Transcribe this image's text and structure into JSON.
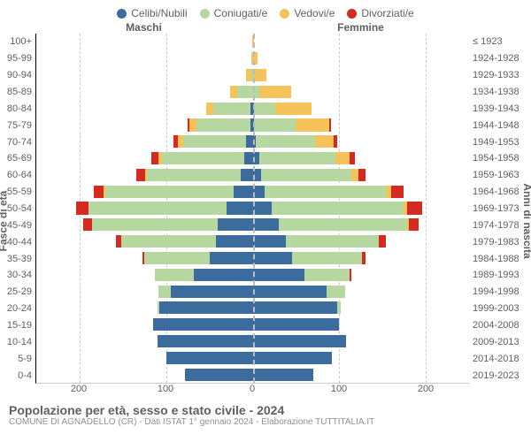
{
  "legend": {
    "items": [
      {
        "label": "Celibi/Nubili",
        "color": "#3b6c9d"
      },
      {
        "label": "Coniugati/e",
        "color": "#b7d7a0"
      },
      {
        "label": "Vedovi/e",
        "color": "#f6c35a"
      },
      {
        "label": "Divorziati/e",
        "color": "#d42a20"
      }
    ]
  },
  "headers": {
    "male": "Maschi",
    "female": "Femmine"
  },
  "axis_left_title": "Fasce di età",
  "axis_right_title": "Anni di nascita",
  "footer": {
    "title": "Popolazione per età, sesso e stato civile - 2024",
    "subtitle": "COMUNE DI AGNADELLO (CR) - Dati ISTAT 1° gennaio 2024 - Elaborazione TUTTITALIA.IT"
  },
  "x_axis": {
    "max": 250,
    "ticks_male": [
      200,
      100,
      0
    ],
    "ticks_female": [
      0,
      100,
      200
    ]
  },
  "rows": [
    {
      "age": "100+",
      "birth": "≤ 1923",
      "m": [
        0,
        0,
        1,
        0
      ],
      "f": [
        0,
        0,
        1,
        0
      ]
    },
    {
      "age": "95-99",
      "birth": "1924-1928",
      "m": [
        0,
        0,
        2,
        0
      ],
      "f": [
        0,
        0,
        6,
        0
      ]
    },
    {
      "age": "90-94",
      "birth": "1929-1933",
      "m": [
        0,
        2,
        6,
        0
      ],
      "f": [
        0,
        2,
        14,
        0
      ]
    },
    {
      "age": "85-89",
      "birth": "1934-1938",
      "m": [
        0,
        18,
        8,
        0
      ],
      "f": [
        0,
        8,
        36,
        0
      ]
    },
    {
      "age": "80-84",
      "birth": "1939-1943",
      "m": [
        3,
        43,
        8,
        0
      ],
      "f": [
        2,
        24,
        42,
        0
      ]
    },
    {
      "age": "75-79",
      "birth": "1944-1948",
      "m": [
        3,
        62,
        8,
        2
      ],
      "f": [
        2,
        48,
        38,
        2
      ]
    },
    {
      "age": "70-74",
      "birth": "1949-1953",
      "m": [
        8,
        72,
        6,
        6
      ],
      "f": [
        4,
        68,
        22,
        4
      ]
    },
    {
      "age": "65-69",
      "birth": "1954-1958",
      "m": [
        10,
        95,
        4,
        8
      ],
      "f": [
        8,
        88,
        16,
        6
      ]
    },
    {
      "age": "60-64",
      "birth": "1959-1963",
      "m": [
        14,
        108,
        2,
        10
      ],
      "f": [
        10,
        104,
        8,
        8
      ]
    },
    {
      "age": "55-59",
      "birth": "1964-1968",
      "m": [
        22,
        148,
        2,
        12
      ],
      "f": [
        14,
        140,
        6,
        14
      ]
    },
    {
      "age": "50-54",
      "birth": "1969-1973",
      "m": [
        30,
        160,
        0,
        14
      ],
      "f": [
        22,
        152,
        4,
        18
      ]
    },
    {
      "age": "45-49",
      "birth": "1974-1978",
      "m": [
        40,
        146,
        0,
        10
      ],
      "f": [
        30,
        148,
        2,
        12
      ]
    },
    {
      "age": "40-44",
      "birth": "1979-1983",
      "m": [
        42,
        110,
        0,
        6
      ],
      "f": [
        38,
        108,
        0,
        8
      ]
    },
    {
      "age": "35-39",
      "birth": "1984-1988",
      "m": [
        50,
        75,
        0,
        2
      ],
      "f": [
        46,
        80,
        0,
        4
      ]
    },
    {
      "age": "30-34",
      "birth": "1989-1993",
      "m": [
        68,
        45,
        0,
        0
      ],
      "f": [
        60,
        52,
        0,
        2
      ]
    },
    {
      "age": "25-29",
      "birth": "1994-1998",
      "m": [
        95,
        14,
        0,
        0
      ],
      "f": [
        85,
        22,
        0,
        0
      ]
    },
    {
      "age": "20-24",
      "birth": "1999-2003",
      "m": [
        108,
        2,
        0,
        0
      ],
      "f": [
        98,
        4,
        0,
        0
      ]
    },
    {
      "age": "15-19",
      "birth": "2004-2008",
      "m": [
        115,
        0,
        0,
        0
      ],
      "f": [
        100,
        0,
        0,
        0
      ]
    },
    {
      "age": "10-14",
      "birth": "2009-2013",
      "m": [
        110,
        0,
        0,
        0
      ],
      "f": [
        108,
        0,
        0,
        0
      ]
    },
    {
      "age": "5-9",
      "birth": "2014-2018",
      "m": [
        100,
        0,
        0,
        0
      ],
      "f": [
        92,
        0,
        0,
        0
      ]
    },
    {
      "age": "0-4",
      "birth": "2019-2023",
      "m": [
        78,
        0,
        0,
        0
      ],
      "f": [
        70,
        0,
        0,
        0
      ]
    }
  ],
  "style": {
    "background": "#ffffff",
    "grid_color": "#cccccc",
    "tick_fontsize": 11,
    "label_color": "#606060"
  }
}
